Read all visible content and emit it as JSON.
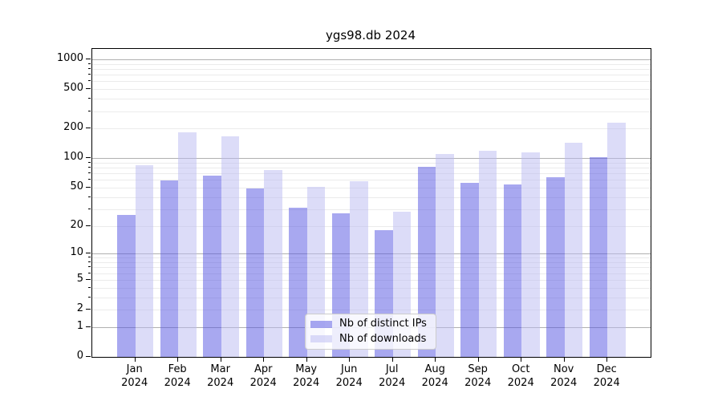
{
  "title": "ygs98.db 2024",
  "chart_data": {
    "type": "bar",
    "title": "ygs98.db 2024",
    "categories": [
      "Jan",
      "Feb",
      "Mar",
      "Apr",
      "May",
      "Jun",
      "Jul",
      "Aug",
      "Sep",
      "Oct",
      "Nov",
      "Dec"
    ],
    "year_label": "2024",
    "series": [
      {
        "name": "Nb of distinct IPs",
        "color": "#a8a8f0",
        "color_rgba": "rgba(81,81,225,0.5)",
        "values": [
          26,
          59,
          66,
          49,
          31,
          27,
          18,
          81,
          56,
          54,
          64,
          103
        ]
      },
      {
        "name": "Nb of downloads",
        "color": "#dcdcf8",
        "color_rgba": "rgba(185,185,241,0.5)",
        "values": [
          85,
          182,
          166,
          75,
          51,
          58,
          28,
          110,
          119,
          115,
          144,
          231
        ]
      }
    ],
    "xlabel": "",
    "ylabel": "",
    "yscale": "log10(value+1)",
    "yticks": [
      0,
      1,
      2,
      5,
      10,
      20,
      50,
      100,
      200,
      500,
      1000
    ],
    "ylim": [
      0,
      1280
    ],
    "grid": "major-and-minor",
    "legend_position": "lower-center"
  },
  "colors": {
    "background": "#ffffff",
    "spine": "#000000",
    "grid_major": "#b0b0b0",
    "grid_minor": "#ebebeb",
    "legend_border": "#cccccc"
  }
}
